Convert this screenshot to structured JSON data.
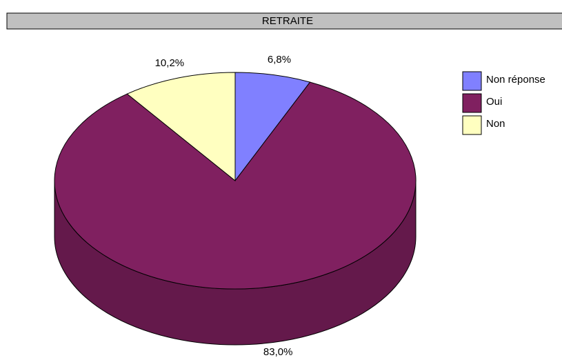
{
  "chart_data": {
    "type": "pie",
    "title": "RETRAITE",
    "categories": [
      "Non réponse",
      "Oui",
      "Non"
    ],
    "values": [
      6.8,
      83.0,
      10.2
    ],
    "value_labels": [
      "6,8%",
      "83,0%",
      "10,2%"
    ],
    "colors": [
      "#8080ff",
      "#802060",
      "#ffffc0"
    ],
    "legend": "right"
  }
}
